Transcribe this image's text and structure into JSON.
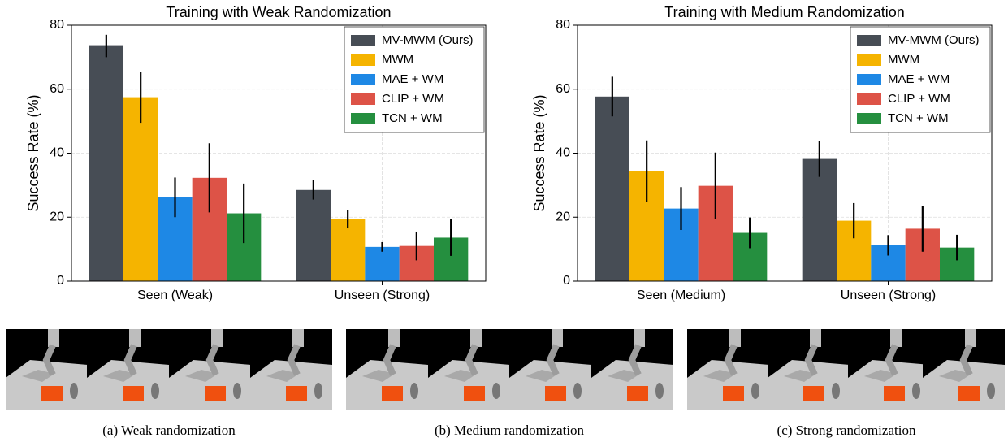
{
  "chart_data": [
    {
      "type": "bar",
      "title": "Training with Weak Randomization",
      "ylabel": "Success Rate (%)",
      "categories": [
        "Seen (Weak)",
        "Unseen (Strong)"
      ],
      "series": [
        {
          "name": "MV-MWM (Ours)",
          "color": "#474d55",
          "values": [
            73.5,
            28.5
          ],
          "errors": [
            3.5,
            3.0
          ]
        },
        {
          "name": "MWM",
          "color": "#f5b400",
          "values": [
            57.5,
            19.3
          ],
          "errors": [
            8.0,
            2.8
          ]
        },
        {
          "name": "MAE + WM",
          "color": "#1e88e5",
          "values": [
            26.2,
            10.7
          ],
          "errors": [
            6.2,
            1.5
          ]
        },
        {
          "name": "CLIP + WM",
          "color": "#dd5347",
          "values": [
            32.3,
            11.0
          ],
          "errors": [
            10.8,
            4.5
          ]
        },
        {
          "name": "TCN + WM",
          "color": "#258f3f",
          "values": [
            21.2,
            13.6
          ],
          "errors": [
            9.3,
            5.7
          ]
        }
      ],
      "ylim": [
        0,
        80
      ],
      "yticks": [
        0,
        20,
        40,
        60,
        80
      ],
      "grid": true,
      "legend": "upper right"
    },
    {
      "type": "bar",
      "title": "Training with Medium Randomization",
      "ylabel": "Success Rate (%)",
      "categories": [
        "Seen (Medium)",
        "Unseen (Strong)"
      ],
      "series": [
        {
          "name": "MV-MWM (Ours)",
          "color": "#474d55",
          "values": [
            57.7,
            38.2
          ],
          "errors": [
            6.2,
            5.6
          ]
        },
        {
          "name": "MWM",
          "color": "#f5b400",
          "values": [
            34.4,
            18.9
          ],
          "errors": [
            9.6,
            5.5
          ]
        },
        {
          "name": "MAE + WM",
          "color": "#1e88e5",
          "values": [
            22.7,
            11.2
          ],
          "errors": [
            6.7,
            3.2
          ]
        },
        {
          "name": "CLIP + WM",
          "color": "#dd5347",
          "values": [
            29.8,
            16.4
          ],
          "errors": [
            10.4,
            7.2
          ]
        },
        {
          "name": "TCN + WM",
          "color": "#258f3f",
          "values": [
            15.1,
            10.5
          ],
          "errors": [
            4.8,
            4.0
          ]
        }
      ],
      "ylim": [
        0,
        80
      ],
      "yticks": [
        0,
        20,
        40,
        60,
        80
      ],
      "grid": true,
      "legend": "upper right"
    }
  ],
  "captions": [
    "(a) Weak randomization",
    "(b) Medium randomization",
    "(c) Strong randomization"
  ]
}
